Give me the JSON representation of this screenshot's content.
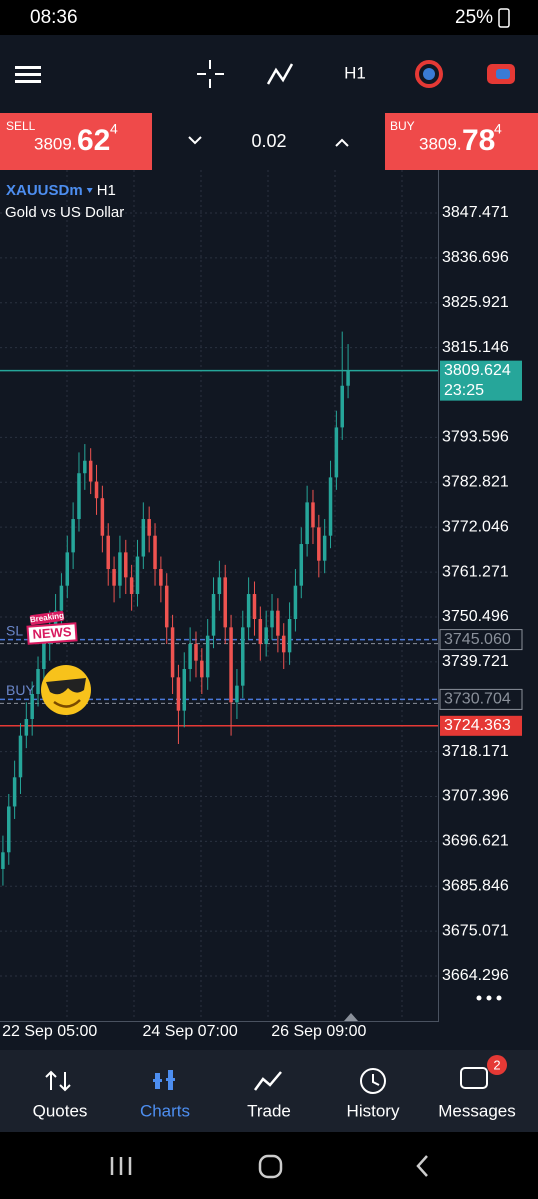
{
  "status_bar": {
    "time": "08:36",
    "battery": "25%"
  },
  "toolbar": {
    "timeframe": "H1"
  },
  "trade_panel": {
    "sell": {
      "label": "SELL",
      "price_main": "3809.",
      "price_big": "62",
      "price_sup": "4"
    },
    "lot": "0.02",
    "buy": {
      "label": "BUY",
      "price_main": "3809.",
      "price_big": "78",
      "price_sup": "4"
    }
  },
  "chart_header": {
    "symbol": "XAUUSDm",
    "timeframe": "H1",
    "description": "Gold vs US Dollar"
  },
  "sticker": {
    "top": "Breaking",
    "bottom": "NEWS"
  },
  "chart_data": {
    "type": "candlestick",
    "up_color": "#26a69a",
    "down_color": "#ef5350",
    "grid": true,
    "ylim": [
      3653.74,
      3857.79
    ],
    "yticks": [
      3847.471,
      3836.696,
      3825.921,
      3815.146,
      3793.596,
      3782.821,
      3772.046,
      3761.271,
      3750.496,
      3739.721,
      3718.171,
      3707.396,
      3696.621,
      3685.846,
      3675.071,
      3664.296
    ],
    "categories": [
      null,
      null,
      null,
      null,
      null,
      null,
      null,
      null,
      "22 Sep 05:00",
      null,
      null,
      null,
      null,
      null,
      null,
      null,
      null,
      null,
      null,
      null,
      null,
      null,
      null,
      null,
      null,
      null,
      null,
      null,
      null,
      null,
      null,
      null,
      "24 Sep 07:00",
      null,
      null,
      null,
      null,
      null,
      null,
      null,
      null,
      null,
      null,
      null,
      null,
      null,
      null,
      null,
      null,
      null,
      null,
      null,
      null,
      null,
      "26 Sep 09:00",
      null,
      null,
      null,
      null,
      null
    ],
    "candles": [
      [
        3690,
        3698,
        3686,
        3694
      ],
      [
        3694,
        3708,
        3691,
        3705
      ],
      [
        3705,
        3716,
        3702,
        3712
      ],
      [
        3712,
        3725,
        3708,
        3722
      ],
      [
        3722,
        3730,
        3719,
        3726
      ],
      [
        3726,
        3735,
        3722,
        3732
      ],
      [
        3732,
        3741,
        3729,
        3738
      ],
      [
        3738,
        3747,
        3734,
        3744
      ],
      [
        3744,
        3752,
        3740,
        3748
      ],
      [
        3748,
        3756,
        3745,
        3752
      ],
      [
        3752,
        3761,
        3748,
        3758
      ],
      [
        3758,
        3770,
        3755,
        3766
      ],
      [
        3766,
        3778,
        3762,
        3774
      ],
      [
        3774,
        3790,
        3771,
        3785
      ],
      [
        3785,
        3792,
        3781,
        3788
      ],
      [
        3788,
        3791,
        3780,
        3783
      ],
      [
        3783,
        3787,
        3775,
        3779
      ],
      [
        3779,
        3782,
        3766,
        3770
      ],
      [
        3770,
        3773,
        3758,
        3762
      ],
      [
        3762,
        3765,
        3754,
        3758
      ],
      [
        3758,
        3770,
        3755,
        3766
      ],
      [
        3766,
        3769,
        3756,
        3760
      ],
      [
        3760,
        3763,
        3752,
        3756
      ],
      [
        3756,
        3769,
        3753,
        3765
      ],
      [
        3765,
        3778,
        3762,
        3774
      ],
      [
        3774,
        3777,
        3766,
        3770
      ],
      [
        3770,
        3773,
        3758,
        3762
      ],
      [
        3762,
        3765,
        3754,
        3758
      ],
      [
        3758,
        3761,
        3744,
        3748
      ],
      [
        3748,
        3751,
        3732,
        3736
      ],
      [
        3736,
        3739,
        3720,
        3728
      ],
      [
        3728,
        3742,
        3724,
        3738
      ],
      [
        3738,
        3748,
        3735,
        3744
      ],
      [
        3744,
        3747,
        3736,
        3740
      ],
      [
        3740,
        3743,
        3732,
        3736
      ],
      [
        3736,
        3750,
        3733,
        3746
      ],
      [
        3746,
        3760,
        3743,
        3756
      ],
      [
        3756,
        3764,
        3752,
        3760
      ],
      [
        3760,
        3763,
        3744,
        3748
      ],
      [
        3748,
        3751,
        3722,
        3730
      ],
      [
        3730,
        3738,
        3726,
        3734
      ],
      [
        3734,
        3752,
        3731,
        3748
      ],
      [
        3748,
        3760,
        3745,
        3756
      ],
      [
        3756,
        3759,
        3746,
        3750
      ],
      [
        3750,
        3753,
        3740,
        3744
      ],
      [
        3744,
        3752,
        3741,
        3748
      ],
      [
        3748,
        3756,
        3745,
        3752
      ],
      [
        3752,
        3755,
        3742,
        3746
      ],
      [
        3746,
        3749,
        3738,
        3742
      ],
      [
        3742,
        3754,
        3739,
        3750
      ],
      [
        3750,
        3762,
        3747,
        3758
      ],
      [
        3758,
        3772,
        3755,
        3768
      ],
      [
        3768,
        3782,
        3765,
        3778
      ],
      [
        3778,
        3781,
        3768,
        3772
      ],
      [
        3772,
        3775,
        3760,
        3764
      ],
      [
        3764,
        3774,
        3761,
        3770
      ],
      [
        3770,
        3788,
        3767,
        3784
      ],
      [
        3784,
        3800,
        3781,
        3796
      ],
      [
        3796,
        3819,
        3793,
        3806
      ],
      [
        3806,
        3816,
        3803,
        3809.624
      ]
    ],
    "price_lines": [
      {
        "value": 3809.624,
        "label": "3809.624",
        "time": "23:25",
        "color": "#26a69a",
        "style": "solid"
      },
      {
        "value": 3745.06,
        "label": "3745.060",
        "tag": "SL",
        "color": "#4a78d8",
        "style": "dashed"
      },
      {
        "value": 3730.704,
        "label": "3730.704",
        "tag": "BUY",
        "color": "#4a78d8",
        "style": "dashed"
      },
      {
        "value": 3724.363,
        "label": "3724.363",
        "color": "#e53935",
        "style": "solid"
      }
    ]
  },
  "bottom_nav": {
    "items": [
      "Quotes",
      "Charts",
      "Trade",
      "History",
      "Messages"
    ],
    "badge": "2"
  }
}
